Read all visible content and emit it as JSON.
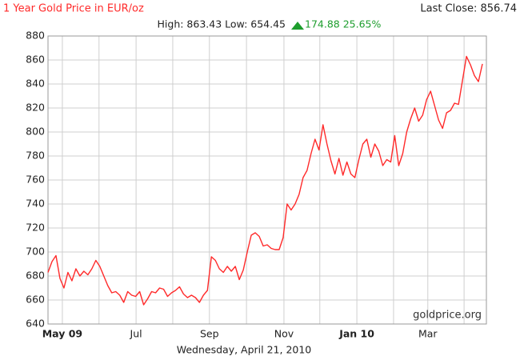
{
  "chart_data": {
    "type": "line",
    "title": "1 Year Gold Price in EUR/oz",
    "last_close": "Last Close: 856.74",
    "high_low": "High: 863.43 Low: 654.45",
    "change": "174.88 25.65%",
    "date_label": "Wednesday, April 21, 2010",
    "watermark": "goldprice.org",
    "color": "#ff2a2a",
    "grid": true,
    "xlim": [
      0,
      110
    ],
    "xticks": [
      {
        "value": 3.6,
        "label": "May 09"
      },
      {
        "value": 22.1,
        "label": "Jul"
      },
      {
        "value": 40.5,
        "label": "Sep"
      },
      {
        "value": 59.2,
        "label": "Nov"
      },
      {
        "value": 77.5,
        "label": "Jan 10"
      },
      {
        "value": 95.3,
        "label": "Mar"
      }
    ],
    "xgrid": [
      12.8,
      31.3,
      49.8,
      68.2,
      86.7,
      104.4
    ],
    "ylim": [
      640,
      880
    ],
    "yticks": [
      640,
      660,
      680,
      700,
      720,
      740,
      760,
      780,
      800,
      820,
      840,
      860,
      880
    ],
    "values": [
      683,
      692,
      697,
      678,
      670,
      683,
      676,
      686,
      680,
      684,
      681,
      686,
      693,
      688,
      680,
      672,
      666,
      667,
      664,
      658,
      667,
      664,
      663,
      667,
      656,
      661,
      667,
      666,
      670,
      669,
      663,
      666,
      668,
      671,
      665,
      662,
      664,
      662,
      658,
      664,
      668,
      696,
      693,
      686,
      683,
      688,
      684,
      688,
      677,
      685,
      700,
      714,
      716,
      713,
      705,
      706,
      703,
      702,
      702,
      712,
      740,
      735,
      740,
      748,
      762,
      768,
      782,
      794,
      785,
      806,
      790,
      776,
      765,
      778,
      764,
      775,
      765,
      762,
      777,
      790,
      794,
      779,
      790,
      784,
      772,
      777,
      775,
      797,
      772,
      782,
      800,
      811,
      820,
      809,
      814,
      827,
      834,
      822,
      810,
      803,
      816,
      818,
      824,
      823,
      843,
      863,
      856,
      847,
      842,
      856.74
    ]
  }
}
